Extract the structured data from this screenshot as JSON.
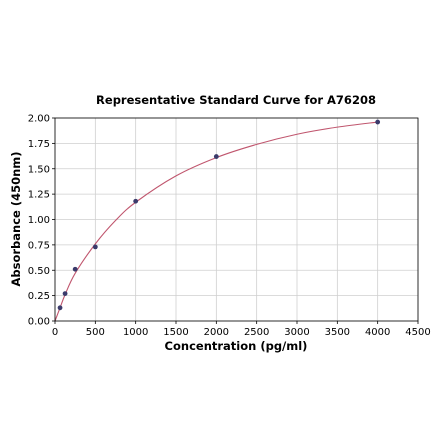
{
  "chart_data": {
    "type": "scatter",
    "title": "Representative Standard Curve for A76208",
    "xlabel": "Concentration (pg/ml)",
    "ylabel": "Absorbance (450nm)",
    "xlim": [
      0,
      4500
    ],
    "ylim": [
      0,
      2.0
    ],
    "xticks": [
      0,
      500,
      1000,
      1500,
      2000,
      2500,
      3000,
      3500,
      4000,
      4500
    ],
    "yticks": [
      0.0,
      0.25,
      0.5,
      0.75,
      1.0,
      1.25,
      1.5,
      1.75,
      2.0
    ],
    "xtick_labels": [
      "0",
      "500",
      "1000",
      "1500",
      "2000",
      "2500",
      "3000",
      "3500",
      "4000",
      "4500"
    ],
    "ytick_labels": [
      "0.00",
      "0.25",
      "0.50",
      "0.75",
      "1.00",
      "1.25",
      "1.50",
      "1.75",
      "2.00"
    ],
    "grid": true,
    "series": [
      {
        "kind": "points",
        "color": "#3b3b6b",
        "x": [
          62.5,
          125,
          250,
          500,
          1000,
          2000,
          4000
        ],
        "y": [
          0.13,
          0.27,
          0.51,
          0.73,
          1.18,
          1.62,
          1.96
        ]
      },
      {
        "kind": "fitted-curve",
        "color": "#c0566e",
        "x": [
          0,
          62.5,
          125,
          250,
          500,
          750,
          1000,
          1500,
          2000,
          2500,
          3000,
          3500,
          4000
        ],
        "y": [
          0.0,
          0.13,
          0.26,
          0.47,
          0.76,
          0.99,
          1.17,
          1.43,
          1.61,
          1.74,
          1.84,
          1.91,
          1.96
        ]
      }
    ]
  }
}
